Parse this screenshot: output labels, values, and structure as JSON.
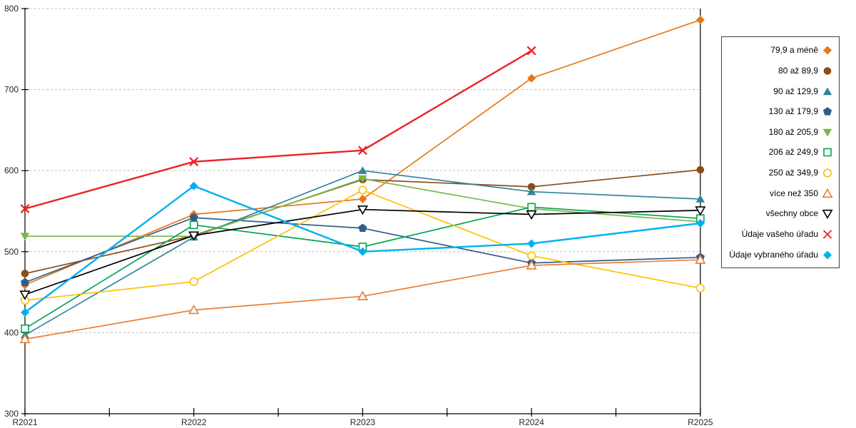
{
  "chart_data": {
    "type": "line",
    "title": "",
    "categories": [
      "R2021",
      "R2022",
      "R2023",
      "R2024",
      "R2025"
    ],
    "xlabel": "",
    "ylabel": "",
    "ylim": [
      300,
      800
    ],
    "y_ticks": [
      300,
      400,
      500,
      600,
      700,
      800
    ],
    "grid": "horizontal-dashed",
    "gridline_color": "#BFBFBF",
    "axis_color": "#000000",
    "tick_label_color": "#262626",
    "legend_position": "right",
    "series": [
      {
        "name": "79,9 a méně",
        "color": "#E67817",
        "marker": "diamond",
        "fill": "filled",
        "line_width": 1.7,
        "values": [
          459,
          546,
          565,
          714,
          786
        ]
      },
      {
        "name": "80 až 89,9",
        "color": "#8C4D1B",
        "marker": "circle",
        "fill": "filled",
        "line_width": 1.7,
        "values": [
          473,
          520,
          589,
          580,
          601
        ]
      },
      {
        "name": "90 až 129,9",
        "color": "#31859C",
        "marker": "triangle-up",
        "fill": "filled",
        "line_width": 1.7,
        "values": [
          397,
          518,
          600,
          574,
          565
        ]
      },
      {
        "name": "130 až 179,9",
        "color": "#2E5E8C",
        "marker": "pentagon",
        "fill": "filled",
        "line_width": 1.7,
        "values": [
          462,
          542,
          529,
          486,
          493
        ]
      },
      {
        "name": "180 až 205,9",
        "color": "#7AB648",
        "marker": "triangle-down",
        "fill": "filled",
        "line_width": 1.7,
        "values": [
          519,
          519,
          590,
          553,
          537
        ]
      },
      {
        "name": "206 až 249,9",
        "color": "#00A651",
        "marker": "square",
        "fill": "open",
        "line_width": 1.7,
        "values": [
          405,
          533,
          506,
          555,
          541
        ]
      },
      {
        "name": "250 až 349,9",
        "color": "#FFC000",
        "marker": "circle",
        "fill": "open",
        "line_width": 1.7,
        "values": [
          440,
          463,
          576,
          495,
          455
        ]
      },
      {
        "name": "více než 350",
        "color": "#ED7D31",
        "marker": "triangle-up",
        "fill": "open",
        "line_width": 1.7,
        "values": [
          392,
          428,
          445,
          483,
          490
        ]
      },
      {
        "name": "všechny obce",
        "color": "#000000",
        "marker": "triangle-down",
        "fill": "open",
        "line_width": 1.7,
        "values": [
          447,
          520,
          552,
          546,
          551
        ]
      },
      {
        "name": "Údaje vašeho úřadu",
        "color": "#ED2024",
        "marker": "x",
        "fill": "open",
        "line_width": 2.4,
        "values": [
          553,
          611,
          625,
          748,
          null
        ]
      },
      {
        "name": "Údaje vybraného úřadu",
        "color": "#00B0F0",
        "marker": "diamond",
        "fill": "filled",
        "line_width": 2.4,
        "values": [
          425,
          581,
          500,
          510,
          535
        ]
      }
    ]
  }
}
